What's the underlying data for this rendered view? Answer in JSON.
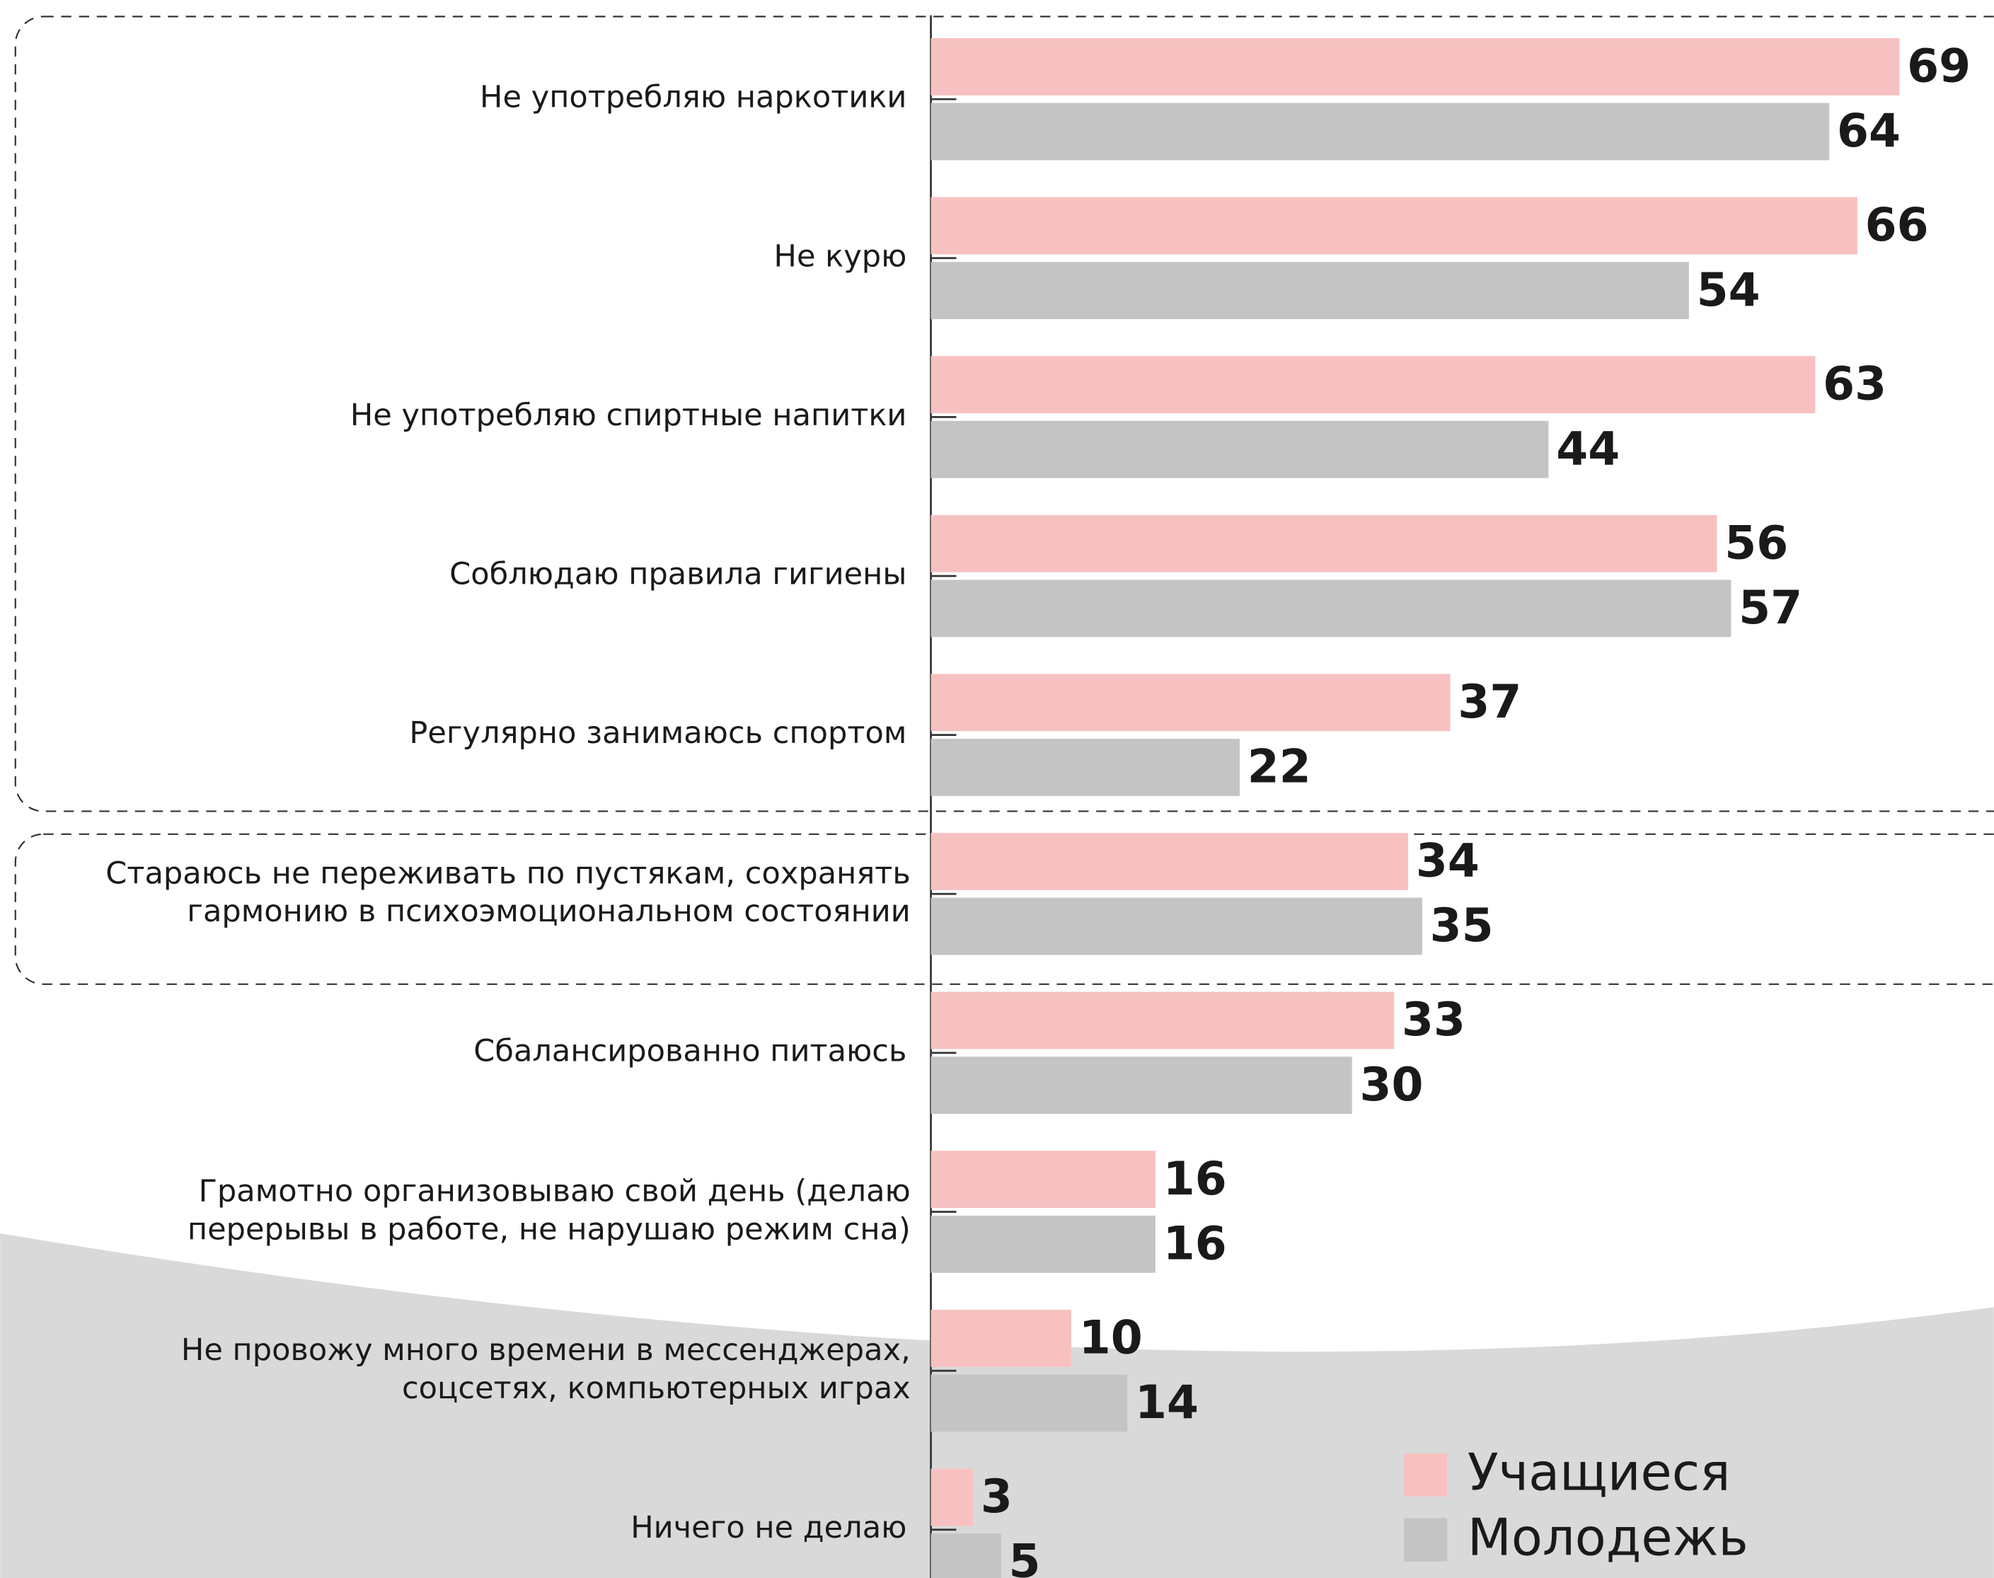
{
  "chart_data": {
    "type": "barh",
    "categories": [
      "Не употребляю наркотики",
      "Не курю",
      "Не употребляю спиртные напитки",
      "Соблюдаю правила гигиены",
      "Регулярно занимаюсь спортом",
      "Стараюсь не переживать по пустякам, сохранять\nгармонию в психоэмоциональном состоянии",
      "Сбалансированно питаюсь",
      "Грамотно организовываю свой день (делаю\nперерывы в работе, не нарушаю режим сна)",
      "Не провожу много времени в мессенджерах,\nсоцсетях, компьютерных играх",
      "Ничего не делаю"
    ],
    "series": [
      {
        "name": "Учащиеся",
        "color": "#f7c1c1",
        "values": [
          69,
          66,
          63,
          56,
          37,
          34,
          33,
          16,
          10,
          3
        ]
      },
      {
        "name": "Молодежь",
        "color": "#c4c4c4",
        "values": [
          64,
          54,
          44,
          57,
          22,
          35,
          30,
          16,
          14,
          5
        ]
      }
    ],
    "xlim": [
      0,
      75
    ]
  }
}
